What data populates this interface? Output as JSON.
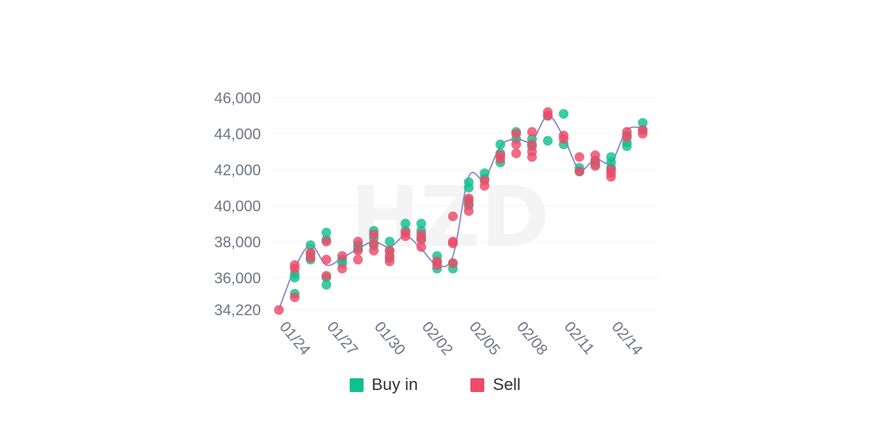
{
  "watermark": "HZD",
  "legend": {
    "items": [
      {
        "label": "Buy in",
        "color": "#12bf8f"
      },
      {
        "label": "Sell",
        "color": "#ee4a6a"
      }
    ]
  },
  "chart_data": {
    "type": "scatter",
    "title": "",
    "xlabel": "",
    "ylabel": "",
    "x_ticks": [
      "01/24",
      "01/27",
      "01/30",
      "02/02",
      "02/05",
      "02/08",
      "02/11",
      "02/14"
    ],
    "y_ticks": [
      "34,220",
      "36,000",
      "38,000",
      "40,000",
      "42,000",
      "44,000",
      "46,000"
    ],
    "y_tick_values": [
      34220,
      36000,
      38000,
      40000,
      42000,
      44000,
      46000
    ],
    "xlim": [
      "01/24",
      "02/15"
    ],
    "ylim": [
      34220,
      46000
    ],
    "grid": true,
    "legend_position": "bottom",
    "trend_line": {
      "color": "#8f89c9",
      "points": [
        [
          "01/24",
          34220
        ],
        [
          "01/25",
          36500
        ],
        [
          "01/26",
          37800
        ],
        [
          "01/27",
          36700
        ],
        [
          "01/28",
          37100
        ],
        [
          "01/29",
          37600
        ],
        [
          "01/30",
          38000
        ],
        [
          "01/31",
          37700
        ],
        [
          "02/01",
          38300
        ],
        [
          "02/02",
          37600
        ],
        [
          "02/03",
          36700
        ],
        [
          "02/04",
          37200
        ],
        [
          "02/05",
          41600
        ],
        [
          "02/06",
          41500
        ],
        [
          "02/07",
          43300
        ],
        [
          "02/08",
          43700
        ],
        [
          "02/09",
          43600
        ],
        [
          "02/10",
          45000
        ],
        [
          "02/11",
          43800
        ],
        [
          "02/12",
          42000
        ],
        [
          "02/13",
          42600
        ],
        [
          "02/14",
          42400
        ],
        [
          "02/15",
          44200
        ],
        [
          "02/16",
          44300
        ]
      ]
    },
    "series": [
      {
        "name": "Buy in",
        "color": "#12bf8f",
        "points": [
          [
            "01/25",
            35100
          ],
          [
            "01/25",
            36000
          ],
          [
            "01/25",
            36200
          ],
          [
            "01/26",
            37800
          ],
          [
            "01/26",
            37300
          ],
          [
            "01/26",
            37000
          ],
          [
            "01/27",
            38500
          ],
          [
            "01/27",
            38100
          ],
          [
            "01/27",
            36000
          ],
          [
            "01/27",
            35600
          ],
          [
            "01/28",
            37000
          ],
          [
            "01/28",
            36800
          ],
          [
            "01/29",
            37600
          ],
          [
            "01/29",
            37800
          ],
          [
            "01/30",
            38600
          ],
          [
            "01/30",
            38200
          ],
          [
            "01/30",
            37800
          ],
          [
            "01/31",
            38000
          ],
          [
            "01/31",
            37500
          ],
          [
            "01/31",
            37100
          ],
          [
            "02/01",
            39000
          ],
          [
            "02/01",
            38600
          ],
          [
            "02/02",
            39000
          ],
          [
            "02/02",
            38600
          ],
          [
            "02/02",
            38200
          ],
          [
            "02/03",
            37200
          ],
          [
            "02/03",
            36900
          ],
          [
            "02/03",
            36500
          ],
          [
            "02/04",
            36800
          ],
          [
            "02/04",
            36500
          ],
          [
            "02/05",
            41300
          ],
          [
            "02/05",
            41000
          ],
          [
            "02/05",
            40300
          ],
          [
            "02/05",
            40000
          ],
          [
            "02/06",
            41800
          ],
          [
            "02/06",
            41500
          ],
          [
            "02/07",
            43400
          ],
          [
            "02/07",
            42900
          ],
          [
            "02/07",
            42400
          ],
          [
            "02/08",
            44100
          ],
          [
            "02/08",
            43700
          ],
          [
            "02/09",
            43700
          ],
          [
            "02/09",
            43300
          ],
          [
            "02/10",
            45000
          ],
          [
            "02/10",
            43600
          ],
          [
            "02/11",
            45100
          ],
          [
            "02/11",
            43400
          ],
          [
            "02/12",
            42100
          ],
          [
            "02/12",
            41900
          ],
          [
            "02/13",
            42500
          ],
          [
            "02/13",
            42300
          ],
          [
            "02/14",
            42700
          ],
          [
            "02/14",
            42400
          ],
          [
            "02/14",
            42100
          ],
          [
            "02/15",
            43900
          ],
          [
            "02/15",
            43500
          ],
          [
            "02/15",
            43300
          ],
          [
            "02/16",
            44600
          ],
          [
            "02/16",
            44200
          ]
        ]
      },
      {
        "name": "Sell",
        "color": "#ee4a6a",
        "points": [
          [
            "01/24",
            34200
          ],
          [
            "01/25",
            36700
          ],
          [
            "01/25",
            36500
          ],
          [
            "01/25",
            34900
          ],
          [
            "01/26",
            37400
          ],
          [
            "01/26",
            37100
          ],
          [
            "01/27",
            38000
          ],
          [
            "01/27",
            37000
          ],
          [
            "01/27",
            36100
          ],
          [
            "01/28",
            37200
          ],
          [
            "01/28",
            36500
          ],
          [
            "01/29",
            38000
          ],
          [
            "01/29",
            37500
          ],
          [
            "01/29",
            37000
          ],
          [
            "01/30",
            38400
          ],
          [
            "01/30",
            37900
          ],
          [
            "01/30",
            37500
          ],
          [
            "01/31",
            37500
          ],
          [
            "01/31",
            37200
          ],
          [
            "01/31",
            36900
          ],
          [
            "02/01",
            38500
          ],
          [
            "02/01",
            38300
          ],
          [
            "02/02",
            38400
          ],
          [
            "02/02",
            38100
          ],
          [
            "02/02",
            37700
          ],
          [
            "02/03",
            36900
          ],
          [
            "02/03",
            36700
          ],
          [
            "02/04",
            39400
          ],
          [
            "02/04",
            38000
          ],
          [
            "02/04",
            37900
          ],
          [
            "02/04",
            36800
          ],
          [
            "02/05",
            40400
          ],
          [
            "02/05",
            40100
          ],
          [
            "02/05",
            39700
          ],
          [
            "02/06",
            41400
          ],
          [
            "02/06",
            41100
          ],
          [
            "02/07",
            42800
          ],
          [
            "02/07",
            42600
          ],
          [
            "02/08",
            44000
          ],
          [
            "02/08",
            43400
          ],
          [
            "02/08",
            42900
          ],
          [
            "02/09",
            44100
          ],
          [
            "02/09",
            43400
          ],
          [
            "02/09",
            43000
          ],
          [
            "02/09",
            42700
          ],
          [
            "02/10",
            45200
          ],
          [
            "02/10",
            45000
          ],
          [
            "02/11",
            43900
          ],
          [
            "02/11",
            43700
          ],
          [
            "02/12",
            42700
          ],
          [
            "02/12",
            41900
          ],
          [
            "02/13",
            42800
          ],
          [
            "02/13",
            42500
          ],
          [
            "02/13",
            42200
          ],
          [
            "02/14",
            42000
          ],
          [
            "02/14",
            41800
          ],
          [
            "02/14",
            41600
          ],
          [
            "02/15",
            44100
          ],
          [
            "02/15",
            43800
          ],
          [
            "02/16",
            44200
          ],
          [
            "02/16",
            44000
          ]
        ]
      }
    ]
  }
}
